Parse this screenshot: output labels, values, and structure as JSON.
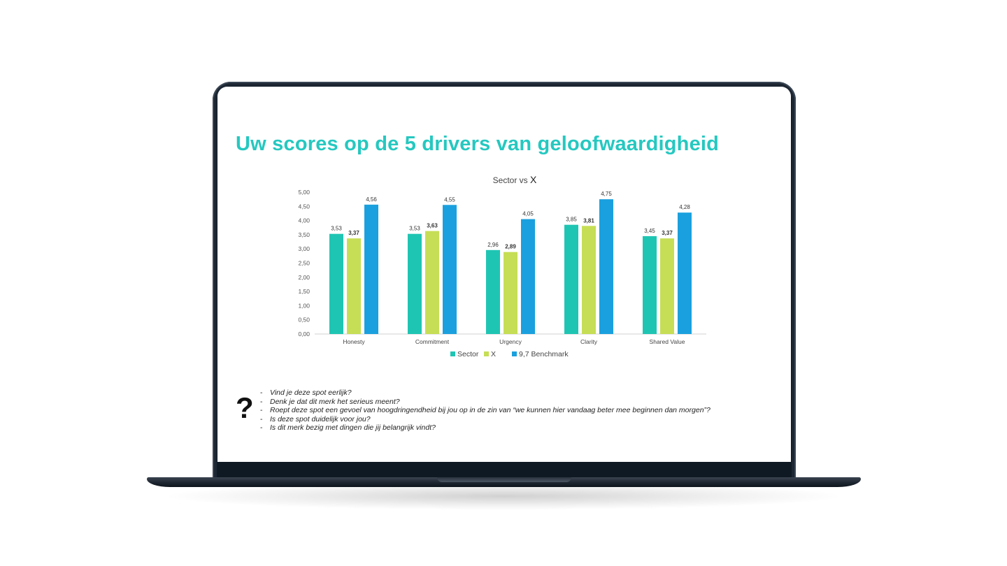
{
  "slide": {
    "title": "Uw scores op de 5 drivers van geloofwaardigheid",
    "question_icon": "question-mark-icon",
    "question_mark": "?",
    "questions": [
      "Vind je deze spot eerlijk?",
      "Denk je dat dit merk het serieus meent?",
      "Roept deze spot een gevoel van hoogdringendheid bij jou op in de zin van “we kunnen hier vandaag beter mee beginnen dan morgen”?",
      "Is deze spot duidelijk voor jou?",
      "Is dit merk bezig met dingen die jij belangrijk vindt?"
    ]
  },
  "colors": {
    "title": "#25c8c0",
    "sector": "#1fc5b3",
    "x": "#c6de55",
    "benchmark": "#1aa0de"
  },
  "chart_data": {
    "type": "bar",
    "title_main": "Sector vs ",
    "title_emph": "X",
    "categories": [
      "Honesty",
      "Commitment",
      "Urgency",
      "Clarity",
      "Shared Value"
    ],
    "series": [
      {
        "name": "Sector",
        "values": [
          3.53,
          3.53,
          2.96,
          3.85,
          3.45
        ],
        "labels": [
          "3,53",
          "3,53",
          "2,96",
          "3,85",
          "3,45"
        ],
        "bold_labels": false
      },
      {
        "name": "X",
        "values": [
          3.37,
          3.63,
          2.89,
          3.81,
          3.37
        ],
        "labels": [
          "3,37",
          "3,63",
          "2,89",
          "3,81",
          "3,37"
        ],
        "bold_labels": true
      },
      {
        "name": "9,7 Benchmark",
        "values": [
          4.56,
          4.55,
          4.05,
          4.75,
          4.28
        ],
        "labels": [
          "4,56",
          "4,55",
          "4,05",
          "4,75",
          "4,28"
        ],
        "bold_labels": false
      }
    ],
    "ylim": [
      0,
      5
    ],
    "yticks": [
      "0,00",
      "0,50",
      "1,00",
      "1,50",
      "2,00",
      "2,50",
      "3,00",
      "3,50",
      "4,00",
      "4,50",
      "5,00"
    ],
    "grid": false,
    "legend": "bottom"
  }
}
